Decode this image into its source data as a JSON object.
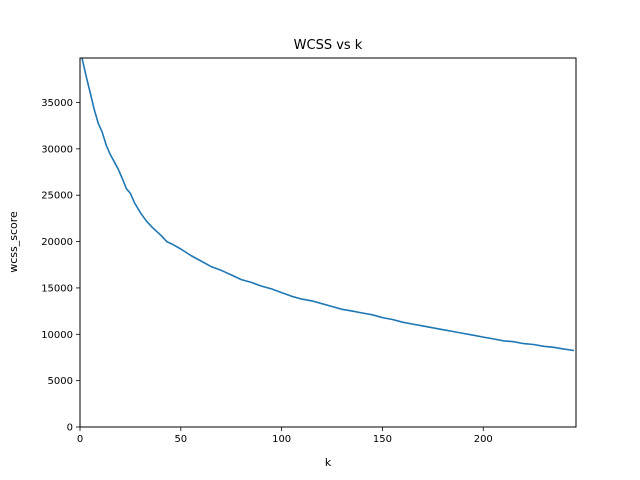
{
  "chart_data": {
    "type": "line",
    "title": "WCSS vs k",
    "xlabel": "k",
    "ylabel": "wcss_score",
    "xlim": [
      0,
      246
    ],
    "ylim": [
      0,
      39800
    ],
    "xticks": [
      0,
      50,
      100,
      150,
      200
    ],
    "yticks": [
      0,
      5000,
      10000,
      15000,
      20000,
      25000,
      30000,
      35000
    ],
    "grid": false,
    "legend": "none",
    "series": [
      {
        "color": "#1f77b4",
        "x": [
          1,
          3,
          5,
          7,
          9,
          11,
          13,
          15,
          17,
          19,
          21,
          23,
          25,
          27,
          30,
          33,
          36,
          40,
          43,
          46,
          50,
          55,
          60,
          65,
          70,
          75,
          80,
          85,
          90,
          95,
          100,
          105,
          110,
          115,
          120,
          125,
          130,
          135,
          140,
          145,
          150,
          155,
          160,
          165,
          170,
          175,
          180,
          185,
          190,
          195,
          200,
          205,
          210,
          215,
          220,
          225,
          230,
          235,
          240,
          245
        ],
        "values": [
          39800,
          37900,
          36100,
          34300,
          32800,
          31800,
          30400,
          29400,
          28600,
          27800,
          26800,
          25700,
          25200,
          24200,
          23100,
          22200,
          21500,
          20700,
          20000,
          19700,
          19200,
          18500,
          17900,
          17300,
          16900,
          16400,
          15900,
          15600,
          15200,
          14900,
          14500,
          14100,
          13800,
          13600,
          13300,
          13000,
          12700,
          12500,
          12300,
          12100,
          11800,
          11600,
          11300,
          11100,
          10900,
          10700,
          10500,
          10300,
          10100,
          9900,
          9700,
          9500,
          9300,
          9200,
          9000,
          8900,
          8700,
          8600,
          8400,
          8250
        ]
      }
    ]
  }
}
